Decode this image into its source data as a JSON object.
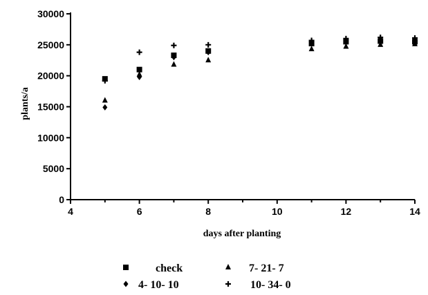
{
  "chart_data": {
    "type": "scatter",
    "xlabel": "days after planting",
    "ylabel": "plants/a",
    "xlim": [
      4,
      14
    ],
    "ylim": [
      0,
      30000
    ],
    "x_ticks": [
      "4",
      "6",
      "8",
      "10",
      "12",
      "14"
    ],
    "y_ticks": [
      "0",
      "5000",
      "10000",
      "15000",
      "20000",
      "25000",
      "30000"
    ],
    "grid": false,
    "legend_position": "bottom",
    "series": [
      {
        "name": "check",
        "marker": "square",
        "x": [
          5,
          6,
          7,
          8,
          11,
          12,
          13,
          14
        ],
        "y": [
          19500,
          21000,
          23300,
          24000,
          25200,
          25500,
          25600,
          25500
        ]
      },
      {
        "name": "7-21-7",
        "marker": "triangle",
        "x": [
          5,
          6,
          7,
          8,
          11,
          12,
          13,
          14
        ],
        "y": [
          16000,
          20200,
          21800,
          22500,
          24300,
          24700,
          25000,
          25100
        ]
      },
      {
        "name": "4-10-10",
        "marker": "diamond",
        "x": [
          5,
          6,
          7,
          8,
          11,
          12,
          13,
          14
        ],
        "y": [
          14900,
          19800,
          23000,
          23800,
          25500,
          25800,
          26000,
          25900
        ]
      },
      {
        "name": "10-34-0",
        "marker": "plus",
        "x": [
          5,
          6,
          7,
          8,
          11,
          12,
          13,
          14
        ],
        "y": [
          19200,
          23800,
          24900,
          25000,
          25700,
          26000,
          26200,
          26100
        ]
      }
    ]
  },
  "legend": {
    "check": "check",
    "s7217": "7- 21- 7",
    "s41010": "4- 10- 10",
    "s10340": "10- 34- 0"
  }
}
